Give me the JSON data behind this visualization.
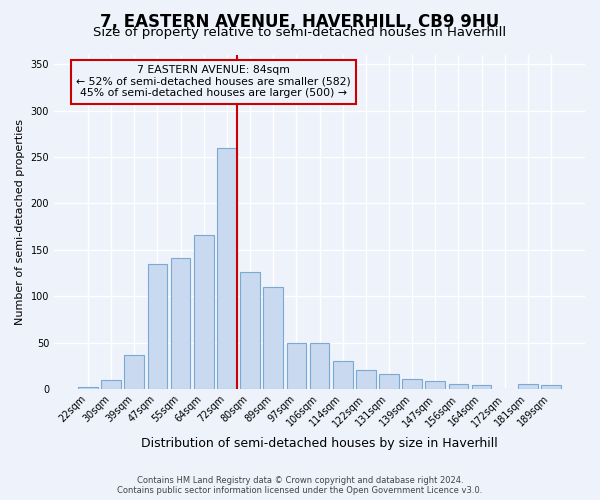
{
  "title": "7, EASTERN AVENUE, HAVERHILL, CB9 9HU",
  "subtitle": "Size of property relative to semi-detached houses in Haverhill",
  "xlabel": "Distribution of semi-detached houses by size in Haverhill",
  "ylabel": "Number of semi-detached properties",
  "categories": [
    "22sqm",
    "30sqm",
    "39sqm",
    "47sqm",
    "55sqm",
    "64sqm",
    "72sqm",
    "80sqm",
    "89sqm",
    "97sqm",
    "106sqm",
    "114sqm",
    "122sqm",
    "131sqm",
    "139sqm",
    "147sqm",
    "156sqm",
    "164sqm",
    "172sqm",
    "181sqm",
    "189sqm"
  ],
  "values": [
    2,
    10,
    37,
    135,
    141,
    166,
    260,
    126,
    110,
    50,
    50,
    30,
    20,
    16,
    11,
    8,
    5,
    4,
    0,
    5,
    4
  ],
  "bar_color": "#c9d9f0",
  "bar_edge_color": "#7aaad4",
  "annotation_text_line1": "7 EASTERN AVENUE: 84sqm",
  "annotation_text_line2": "← 52% of semi-detached houses are smaller (582)",
  "annotation_text_line3": "45% of semi-detached houses are larger (500) →",
  "vline_color": "#cc0000",
  "annotation_box_edge_color": "#cc0000",
  "footer_line1": "Contains HM Land Registry data © Crown copyright and database right 2024.",
  "footer_line2": "Contains public sector information licensed under the Open Government Licence v3.0.",
  "title_fontsize": 12,
  "subtitle_fontsize": 9.5,
  "ylim": [
    0,
    360
  ],
  "background_color": "#eef2fb"
}
